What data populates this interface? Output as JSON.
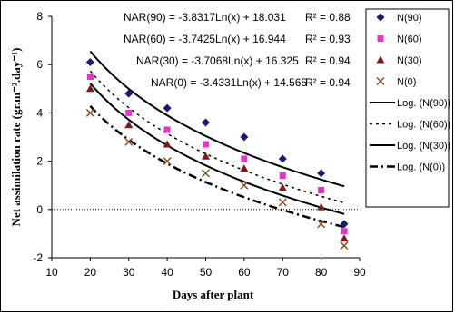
{
  "chart_data": {
    "type": "scatter",
    "xlabel": "Days after plant",
    "ylabel": "Net assimilation rate (gr.m⁻².day⁻¹)",
    "xlim": [
      10,
      90
    ],
    "ylim": [
      -2,
      8
    ],
    "x_ticks": [
      10,
      20,
      30,
      40,
      50,
      60,
      70,
      80,
      90
    ],
    "y_ticks": [
      -2,
      0,
      2,
      4,
      6,
      8
    ],
    "grid": false,
    "legend_position": "right",
    "x": [
      20,
      30,
      40,
      50,
      60,
      70,
      80,
      86
    ],
    "series": [
      {
        "name": "N(90)",
        "marker": "diamond",
        "color": "#1a1a7a",
        "values": [
          6.1,
          4.8,
          4.2,
          3.6,
          3.0,
          2.1,
          1.5,
          -0.6
        ]
      },
      {
        "name": "N(60)",
        "marker": "square",
        "color": "#e633cc",
        "values": [
          5.5,
          4.0,
          3.3,
          2.7,
          2.1,
          1.4,
          0.8,
          -0.9
        ]
      },
      {
        "name": "N(30)",
        "marker": "triangle",
        "color": "#7a1a1a",
        "values": [
          5.0,
          3.5,
          2.7,
          2.2,
          1.7,
          0.9,
          0.1,
          -1.2
        ]
      },
      {
        "name": "N(0)",
        "marker": "x",
        "color": "#8a4a1a",
        "values": [
          4.0,
          2.8,
          2.0,
          1.5,
          1.0,
          0.3,
          -0.6,
          -1.5
        ]
      }
    ],
    "trendlines": [
      {
        "name": "Log. (N(90))",
        "a": -3.8317,
        "b": 18.031,
        "dash": "solid",
        "equation": "NAR(90) = -3.8317Ln(x) + 18.031",
        "r2": "R² = 0.88"
      },
      {
        "name": "Log. (N(60))",
        "a": -3.7425,
        "b": 16.944,
        "dash": "dotted",
        "equation": "NAR(60) = -3.7425Ln(x) + 16.944",
        "r2": "R² = 0.93"
      },
      {
        "name": "Log. (N(30))",
        "a": -3.7068,
        "b": 16.325,
        "dash": "solid",
        "equation": "NAR(30) = -3.7068Ln(x) + 16.325",
        "r2": "R² = 0.94"
      },
      {
        "name": "Log. (N(0))",
        "a": -3.4331,
        "b": 14.565,
        "dash": "dashdot",
        "equation": "NAR(0) = -3.4331Ln(x) + 14.565",
        "r2": "R² = 0.94"
      }
    ],
    "trend_x_range": [
      20,
      86
    ]
  }
}
